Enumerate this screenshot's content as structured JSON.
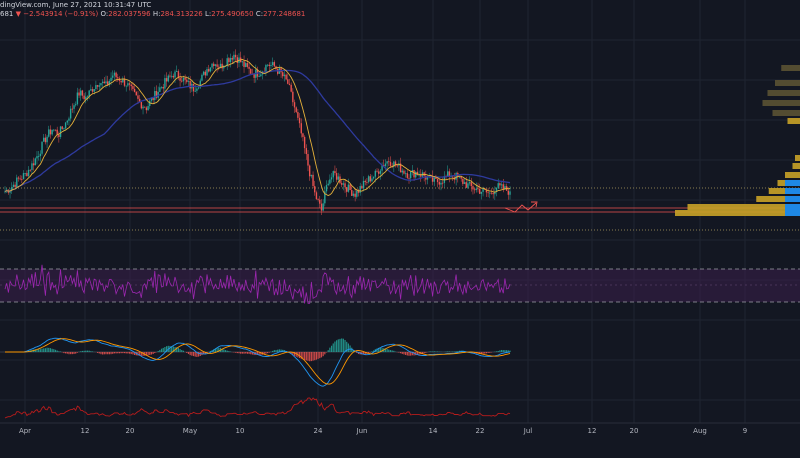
{
  "header": {
    "line1": "dingView.com, June 27, 2021 10:31:47 UTC",
    "prev_close_fragment": "681",
    "change": "−2.543914 (−0.91%)",
    "open_label": "O:",
    "open": "282.037596",
    "high_label": "H:",
    "high": "284.313226",
    "low_label": "L:",
    "low": "275.490650",
    "close_label": "C:",
    "close": "277.248681"
  },
  "colors": {
    "background": "#131722",
    "grid": "#1f2431",
    "candle_up": "#26a69a",
    "candle_down": "#ef5350",
    "ma_fast": "#e5b13a",
    "ma_slow": "#2e3a9e",
    "rsi_line": "#9c27b0",
    "rsi_band": "#3a1f4b",
    "macd": "#2196f3",
    "signal": "#ff9800",
    "bottom_line": "#b71c1c",
    "volume_profile_gold": "#c9a227",
    "volume_profile_dark": "#5b5233",
    "volume_profile_blue": "#1e88e5"
  },
  "chart_data": {
    "type": "candlestick",
    "x_axis_ticks": [
      "Apr",
      "12",
      "20",
      "May",
      "10",
      "24",
      "Jun",
      "14",
      "22",
      "Jul",
      "12",
      "20",
      "Aug",
      "9"
    ],
    "price_series_close": [
      248,
      252,
      258,
      262,
      270,
      280,
      292,
      300,
      296,
      305,
      318,
      330,
      326,
      334,
      340,
      336,
      345,
      342,
      338,
      330,
      322,
      318,
      326,
      334,
      340,
      346,
      344,
      338,
      334,
      340,
      350,
      356,
      352,
      358,
      362,
      356,
      350,
      346,
      348,
      354,
      352,
      346,
      338,
      318,
      296,
      270,
      246,
      232,
      258,
      262,
      256,
      250,
      246,
      252,
      258,
      262,
      270,
      274,
      270,
      266,
      262,
      264,
      262,
      258,
      256,
      258,
      262,
      260,
      256,
      252,
      250,
      248,
      246,
      252,
      250,
      248
    ],
    "ma_fast_label": "",
    "ma_slow_label": "",
    "horizontal_levels": [
      {
        "style": "dotted",
        "color": "#b0a060"
      },
      {
        "style": "solid",
        "color": "#ef5350"
      },
      {
        "style": "solid",
        "color": "#ef5350"
      },
      {
        "style": "dotted",
        "color": "#b0a060"
      }
    ],
    "volume_profile_bars": [
      0.15,
      0.2,
      0.26,
      0.3,
      0.22,
      0.1,
      0.04,
      0.06,
      0.12,
      0.18,
      0.25,
      0.35,
      0.9,
      1.0
    ],
    "rsi_levels": [
      70,
      50,
      30
    ],
    "indicators": [
      "RSI",
      "MACD",
      "Line"
    ]
  }
}
